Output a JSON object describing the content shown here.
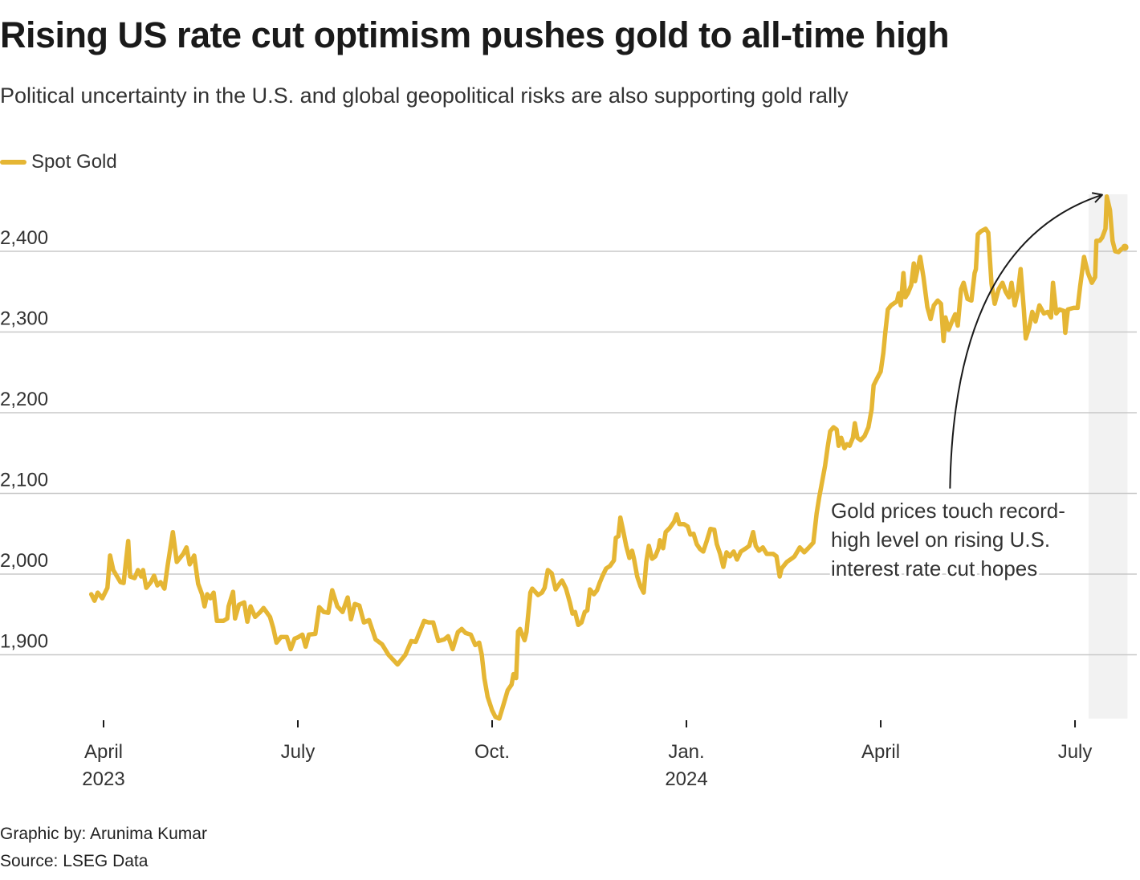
{
  "header": {
    "title": "Rising US rate cut optimism pushes gold to all-time high",
    "subtitle": "Political uncertainty in the U.S. and global geopolitical risks are also supporting gold rally"
  },
  "legend": {
    "label": "Spot Gold",
    "color": "#e5b634"
  },
  "footer": {
    "credit": "Graphic by: Arunima Kumar",
    "source": "Source: LSEG Data"
  },
  "chart_data": {
    "type": "line",
    "title": "Rising US rate cut optimism pushes gold to all-time high",
    "subtitle": "Political uncertainty in the U.S. and global geopolitical risks are also supporting gold rally",
    "xlabel": "",
    "ylabel": "",
    "x_unit": "months since April 1, 2023",
    "xlim": [
      -0.6,
      15.85
    ],
    "ylim": [
      1810,
      2480
    ],
    "grid": true,
    "legend_position": "top-left",
    "yticks": [
      1900,
      2000,
      2100,
      2200,
      2300,
      2400
    ],
    "ytick_labels": [
      "1,900",
      "2,000",
      "2,100",
      "2,200",
      "2,300",
      "2,400"
    ],
    "xticks": [
      {
        "x": 0,
        "label": "April",
        "sublabel": "2023"
      },
      {
        "x": 3,
        "label": "July",
        "sublabel": ""
      },
      {
        "x": 6,
        "label": "Oct.",
        "sublabel": ""
      },
      {
        "x": 9,
        "label": "Jan.",
        "sublabel": "2024"
      },
      {
        "x": 12,
        "label": "April",
        "sublabel": ""
      },
      {
        "x": 15,
        "label": "July",
        "sublabel": ""
      }
    ],
    "highlight": {
      "x_start": 15.21,
      "x_end": 15.81,
      "color": "#f2f2f2"
    },
    "annotation": {
      "lines": [
        "Gold prices touch record-",
        "high level on rising U.S.",
        "interest rate cut hopes"
      ],
      "arrow_from": {
        "x": 13.07,
        "y": 2106
      },
      "arrow_to": {
        "x": 15.42,
        "y": 2470
      }
    },
    "series": [
      {
        "name": "Spot Gold",
        "color": "#e5b634",
        "x": [
          -0.19,
          -0.14,
          -0.09,
          -0.02,
          0.06,
          0.1,
          0.15,
          0.26,
          0.31,
          0.38,
          0.41,
          0.48,
          0.53,
          0.58,
          0.61,
          0.66,
          0.73,
          0.78,
          0.83,
          0.88,
          0.94,
          0.99,
          1.07,
          1.13,
          1.23,
          1.28,
          1.33,
          1.4,
          1.46,
          1.52,
          1.56,
          1.6,
          1.65,
          1.7,
          1.75,
          1.85,
          1.91,
          1.93,
          2.0,
          2.03,
          2.09,
          2.17,
          2.22,
          2.27,
          2.34,
          2.42,
          2.47,
          2.57,
          2.62,
          2.67,
          2.74,
          2.83,
          2.89,
          2.95,
          3.01,
          3.07,
          3.12,
          3.17,
          3.27,
          3.33,
          3.4,
          3.47,
          3.53,
          3.61,
          3.69,
          3.77,
          3.82,
          3.88,
          3.95,
          4.02,
          4.1,
          4.2,
          4.3,
          4.4,
          4.54,
          4.66,
          4.75,
          4.82,
          4.95,
          5.02,
          5.09,
          5.17,
          5.26,
          5.32,
          5.39,
          5.47,
          5.53,
          5.59,
          5.67,
          5.74,
          5.8,
          5.84,
          5.88,
          5.93,
          6.0,
          6.05,
          6.11,
          6.16,
          6.24,
          6.3,
          6.33,
          6.37,
          6.4,
          6.43,
          6.5,
          6.53,
          6.59,
          6.62,
          6.71,
          6.77,
          6.81,
          6.86,
          6.92,
          6.98,
          7.04,
          7.08,
          7.14,
          7.2,
          7.24,
          7.28,
          7.33,
          7.38,
          7.43,
          7.47,
          7.51,
          7.57,
          7.62,
          7.66,
          7.7,
          7.76,
          7.82,
          7.88,
          7.91,
          7.95,
          7.98,
          8.02,
          8.07,
          8.12,
          8.16,
          8.19,
          8.24,
          8.29,
          8.34,
          8.38,
          8.42,
          8.47,
          8.52,
          8.57,
          8.59,
          8.64,
          8.68,
          8.74,
          8.81,
          8.85,
          8.89,
          8.96,
          9.02,
          9.06,
          9.11,
          9.16,
          9.21,
          9.26,
          9.31,
          9.37,
          9.43,
          9.47,
          9.52,
          9.57,
          9.62,
          9.67,
          9.73,
          9.78,
          9.84,
          9.92,
          9.97,
          10.03,
          10.07,
          10.12,
          10.18,
          10.24,
          10.34,
          10.39,
          10.44,
          10.47,
          10.55,
          10.64,
          10.67,
          10.75,
          10.82,
          10.88,
          10.96,
          11.01,
          11.05,
          11.09,
          11.14,
          11.18,
          11.22,
          11.27,
          11.32,
          11.35,
          11.39,
          11.44,
          11.48,
          11.52,
          11.57,
          11.6,
          11.64,
          11.69,
          11.75,
          11.81,
          11.86,
          11.89,
          11.94,
          12.0,
          12.04,
          12.07,
          12.11,
          12.16,
          12.25,
          12.28,
          12.31,
          12.35,
          12.38,
          12.42,
          12.47,
          12.51,
          12.53,
          12.57,
          12.61,
          12.66,
          12.72,
          12.77,
          12.82,
          12.88,
          12.93,
          12.97,
          13.0,
          13.05,
          13.1,
          13.15,
          13.19,
          13.24,
          13.28,
          13.34,
          13.4,
          13.45,
          13.47,
          13.5,
          13.55,
          13.62,
          13.66,
          13.71,
          13.76,
          13.82,
          13.88,
          13.93,
          13.98,
          14.02,
          14.07,
          14.12,
          14.16,
          14.21,
          14.24,
          14.29,
          14.34,
          14.39,
          14.45,
          14.52,
          14.58,
          14.63,
          14.66,
          14.71,
          14.76,
          14.83,
          14.85,
          14.89,
          14.98,
          15.04,
          15.08,
          15.14,
          15.2,
          15.26,
          15.31,
          15.33,
          15.38,
          15.42,
          15.47,
          15.49,
          15.54,
          15.58,
          15.62,
          15.67,
          15.72,
          15.77
        ],
        "values": [
          1975,
          1967,
          1977,
          1970,
          1983,
          2023,
          2005,
          1990,
          1989,
          2041,
          1997,
          1995,
          2005,
          1997,
          2005,
          1983,
          1990,
          1998,
          1986,
          1990,
          1982,
          2011,
          2052,
          2015,
          2025,
          2033,
          2012,
          2023,
          1988,
          1975,
          1960,
          1975,
          1970,
          1977,
          1942,
          1942,
          1945,
          1960,
          1978,
          1945,
          1962,
          1965,
          1941,
          1960,
          1947,
          1953,
          1958,
          1947,
          1933,
          1915,
          1922,
          1922,
          1907,
          1920,
          1922,
          1925,
          1910,
          1925,
          1926,
          1959,
          1953,
          1952,
          1980,
          1960,
          1953,
          1971,
          1944,
          1963,
          1961,
          1940,
          1943,
          1919,
          1913,
          1900,
          1888,
          1900,
          1917,
          1916,
          1942,
          1940,
          1940,
          1917,
          1919,
          1923,
          1907,
          1928,
          1932,
          1927,
          1925,
          1912,
          1915,
          1900,
          1871,
          1848,
          1831,
          1823,
          1821,
          1834,
          1856,
          1863,
          1876,
          1871,
          1929,
          1932,
          1918,
          1928,
          1977,
          1982,
          1974,
          1977,
          1983,
          2005,
          2001,
          1981,
          1988,
          1992,
          1982,
          1965,
          1951,
          1953,
          1937,
          1940,
          1953,
          1955,
          1981,
          1975,
          1980,
          1989,
          1997,
          2007,
          2010,
          2017,
          2045,
          2047,
          2070,
          2055,
          2035,
          2020,
          2029,
          2019,
          1997,
          1985,
          1977,
          2015,
          2035,
          2019,
          2022,
          2032,
          2042,
          2032,
          2052,
          2057,
          2065,
          2074,
          2062,
          2062,
          2059,
          2049,
          2050,
          2037,
          2031,
          2028,
          2040,
          2056,
          2055,
          2037,
          2025,
          2009,
          2027,
          2022,
          2028,
          2018,
          2028,
          2032,
          2035,
          2052,
          2035,
          2029,
          2033,
          2025,
          2025,
          2022,
          1997,
          2007,
          2015,
          2020,
          2022,
          2033,
          2027,
          2032,
          2039,
          2075,
          2095,
          2112,
          2134,
          2157,
          2177,
          2182,
          2179,
          2159,
          2169,
          2156,
          2161,
          2159,
          2169,
          2187,
          2169,
          2166,
          2171,
          2182,
          2204,
          2234,
          2242,
          2251,
          2274,
          2299,
          2328,
          2333,
          2338,
          2348,
          2333,
          2373,
          2343,
          2348,
          2358,
          2385,
          2363,
          2378,
          2393,
          2368,
          2331,
          2316,
          2333,
          2339,
          2335,
          2289,
          2318,
          2303,
          2313,
          2322,
          2308,
          2353,
          2361,
          2341,
          2339,
          2373,
          2378,
          2421,
          2425,
          2428,
          2423,
          2360,
          2335,
          2353,
          2361,
          2350,
          2343,
          2361,
          2333,
          2351,
          2378,
          2328,
          2292,
          2305,
          2325,
          2313,
          2333,
          2323,
          2325,
          2318,
          2361,
          2323,
          2328,
          2326,
          2299,
          2328,
          2330,
          2330,
          2357,
          2393,
          2373,
          2361,
          2368,
          2413,
          2413,
          2417,
          2428,
          2468,
          2451,
          2413,
          2400,
          2399,
          2403,
          2405
        ]
      }
    ]
  }
}
